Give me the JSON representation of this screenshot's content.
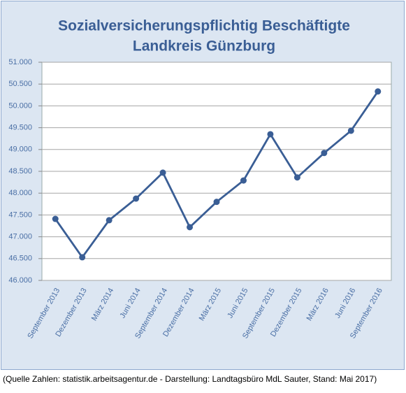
{
  "chart_data": {
    "type": "line",
    "title": "Sozialversicherungspflichtig Beschäftigte",
    "subtitle": "Landkreis Günzburg",
    "categories": [
      "September 2013",
      "Dezember 2013",
      "März 2014",
      "Juni 2014",
      "September 2014",
      "Dezember 2014",
      "März 2015",
      "Juni 2015",
      "September 2015",
      "Dezember 2015",
      "März 2016",
      "Juni 2016",
      "September 2016"
    ],
    "series": [
      {
        "color": "#3a5e95",
        "values": [
          47410,
          46530,
          47380,
          47875,
          48470,
          47220,
          47800,
          48290,
          49350,
          48360,
          48920,
          49430,
          50330
        ]
      }
    ],
    "ylim": [
      46000,
      51000
    ],
    "yticks": [
      {
        "value": 46000,
        "label": "46.000"
      },
      {
        "value": 46500,
        "label": "46.500"
      },
      {
        "value": 47000,
        "label": "47.000"
      },
      {
        "value": 47500,
        "label": "47.500"
      },
      {
        "value": 48000,
        "label": "48.000"
      },
      {
        "value": 48500,
        "label": "48.500"
      },
      {
        "value": 49000,
        "label": "49.000"
      },
      {
        "value": 49500,
        "label": "49.500"
      },
      {
        "value": 50000,
        "label": "50.000"
      },
      {
        "value": 50500,
        "label": "50.500"
      },
      {
        "value": 51000,
        "label": "51.000"
      }
    ],
    "grid": true,
    "source": "(Quelle Zahlen: statistik.arbeitsagentur.de - Darstellung: Landtagsbüro MdL Sauter, Stand: Mai 2017)"
  }
}
